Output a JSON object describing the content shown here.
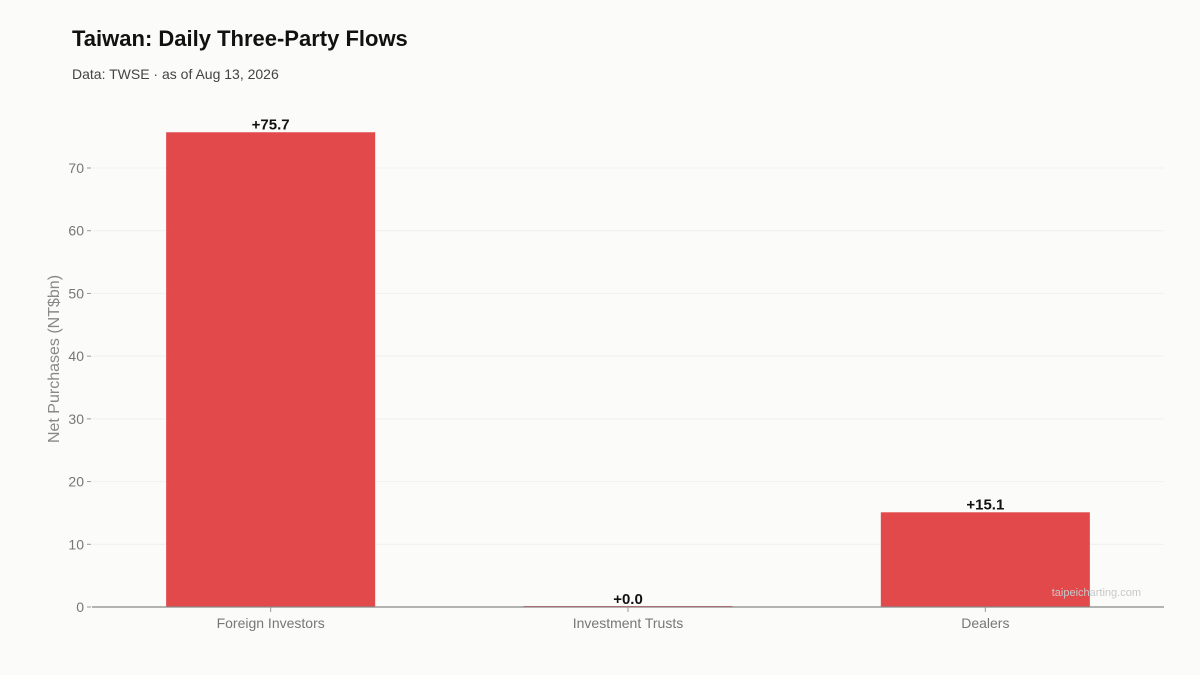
{
  "header": {
    "title": "Taiwan: Daily Three-Party Flows",
    "subtitle": "Data: TWSE · as of Aug 13, 2026"
  },
  "watermark": "taipeicharting.com",
  "colors": {
    "bar": "#e2494b",
    "background": "#fbfbf9",
    "axis": "#888888",
    "grid": "#f0f0ee"
  },
  "chart_data": {
    "type": "bar",
    "title": "Taiwan: Daily Three-Party Flows",
    "subtitle": "Data: TWSE · as of Aug 13, 2026",
    "xlabel": "",
    "ylabel": "Net Purchases (NT$bn)",
    "categories": [
      "Foreign Investors",
      "Investment Trusts",
      "Dealers"
    ],
    "values": [
      75.7,
      0.0,
      15.1
    ],
    "data_labels": [
      "+75.7",
      "+0.0",
      "+15.1"
    ],
    "yticks": [
      0,
      10,
      20,
      30,
      40,
      50,
      60,
      70
    ],
    "ytick_labels": [
      "0",
      "10",
      "20",
      "30",
      "40",
      "50",
      "60",
      "70"
    ],
    "ylim": [
      0,
      78
    ],
    "grid": true,
    "legend": "none"
  }
}
